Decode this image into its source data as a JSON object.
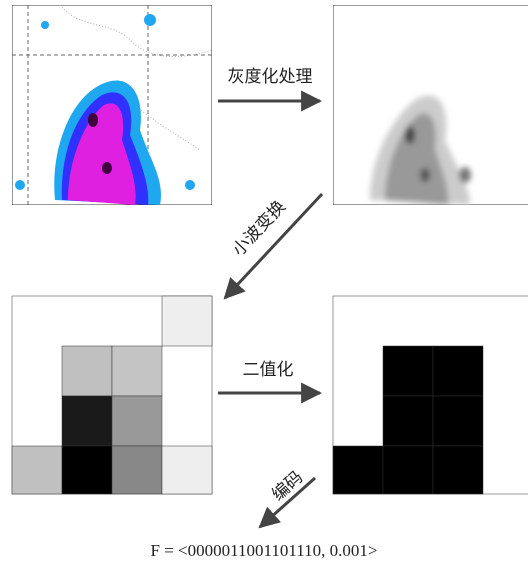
{
  "steps": {
    "grayscale": "灰度化处理",
    "wavelet": "小波变换",
    "binarize": "二值化",
    "encode": "编码"
  },
  "result": "F = <0000011001101110, 0.001>"
}
